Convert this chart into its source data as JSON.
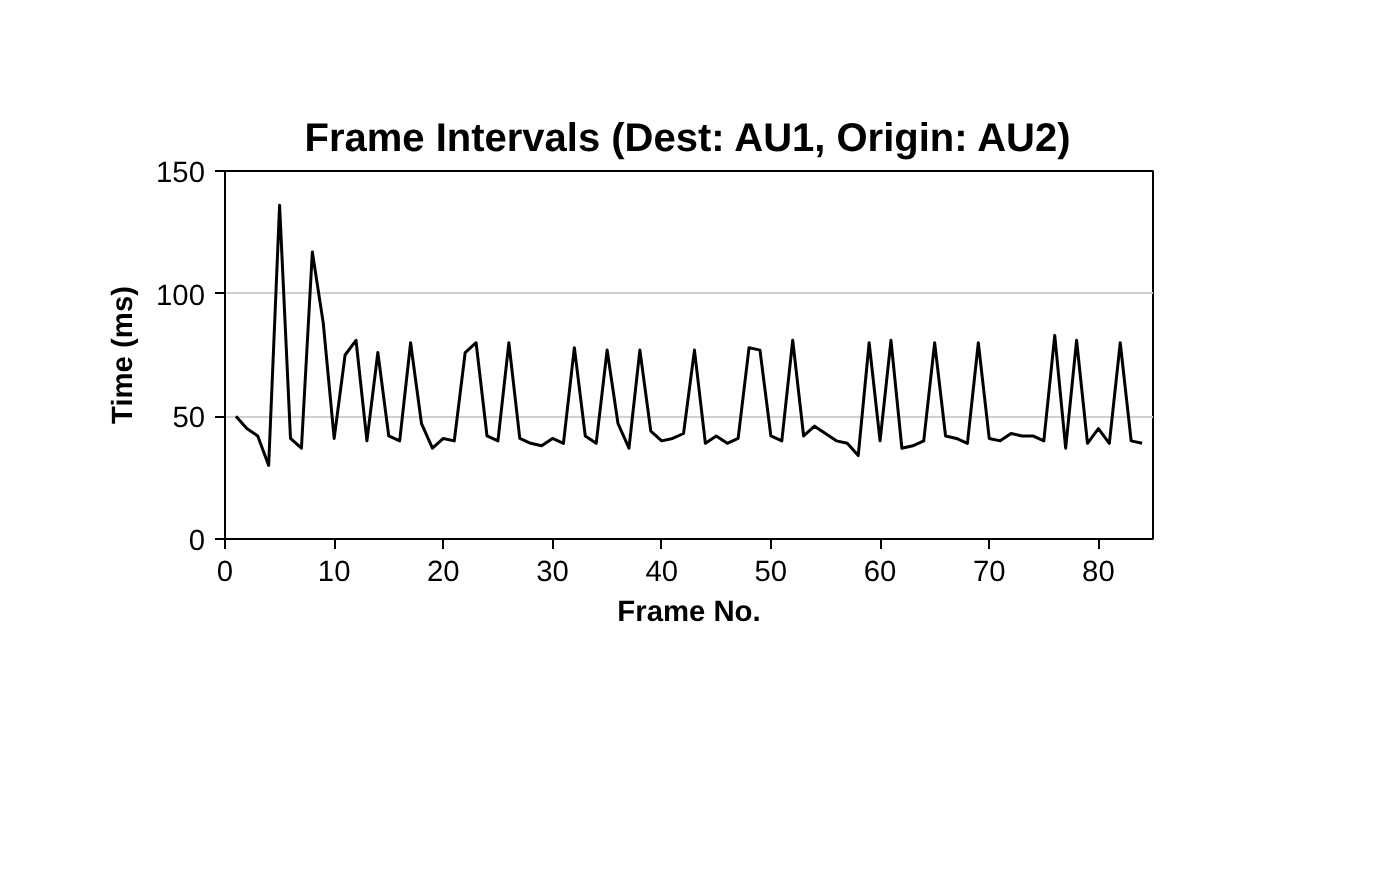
{
  "chart_data": {
    "type": "line",
    "title": "Frame Intervals (Dest: AU1, Origin: AU2)",
    "xlabel": "Frame No.",
    "ylabel": "Time (ms)",
    "x": [
      1,
      2,
      3,
      4,
      5,
      6,
      7,
      8,
      9,
      10,
      11,
      12,
      13,
      14,
      15,
      16,
      17,
      18,
      19,
      20,
      21,
      22,
      23,
      24,
      25,
      26,
      27,
      28,
      29,
      30,
      31,
      32,
      33,
      34,
      35,
      36,
      37,
      38,
      39,
      40,
      41,
      42,
      43,
      44,
      45,
      46,
      47,
      48,
      49,
      50,
      51,
      52,
      53,
      54,
      55,
      56,
      57,
      58,
      59,
      60,
      61,
      62,
      63,
      64,
      65,
      66,
      67,
      68,
      69,
      70,
      71,
      72,
      73,
      74,
      75,
      76,
      77,
      78,
      79,
      80,
      81,
      82,
      83,
      84
    ],
    "series": [
      {
        "color": "#000000",
        "values": [
          50,
          45,
          42,
          30,
          136,
          41,
          37,
          117,
          88,
          41,
          75,
          81,
          40,
          76,
          42,
          40,
          80,
          47,
          37,
          41,
          40,
          76,
          80,
          42,
          40,
          80,
          41,
          39,
          38,
          41,
          39,
          78,
          42,
          39,
          77,
          47,
          37,
          77,
          44,
          40,
          41,
          43,
          77,
          39,
          42,
          39,
          41,
          78,
          77,
          42,
          40,
          81,
          42,
          46,
          43,
          40,
          39,
          34,
          80,
          40,
          81,
          37,
          38,
          40,
          80,
          42,
          41,
          39,
          80,
          41,
          40,
          43,
          42,
          42,
          40,
          83,
          37,
          81,
          39,
          45,
          39,
          80,
          40,
          39
        ]
      }
    ],
    "xlim": [
      0,
      85
    ],
    "xticks": [
      0,
      10,
      20,
      30,
      40,
      50,
      60,
      70,
      80
    ],
    "ylim": [
      0,
      150
    ],
    "yticks": [
      0,
      50,
      100,
      150
    ],
    "grid": "y",
    "marker": "none",
    "line_style": "solid"
  }
}
